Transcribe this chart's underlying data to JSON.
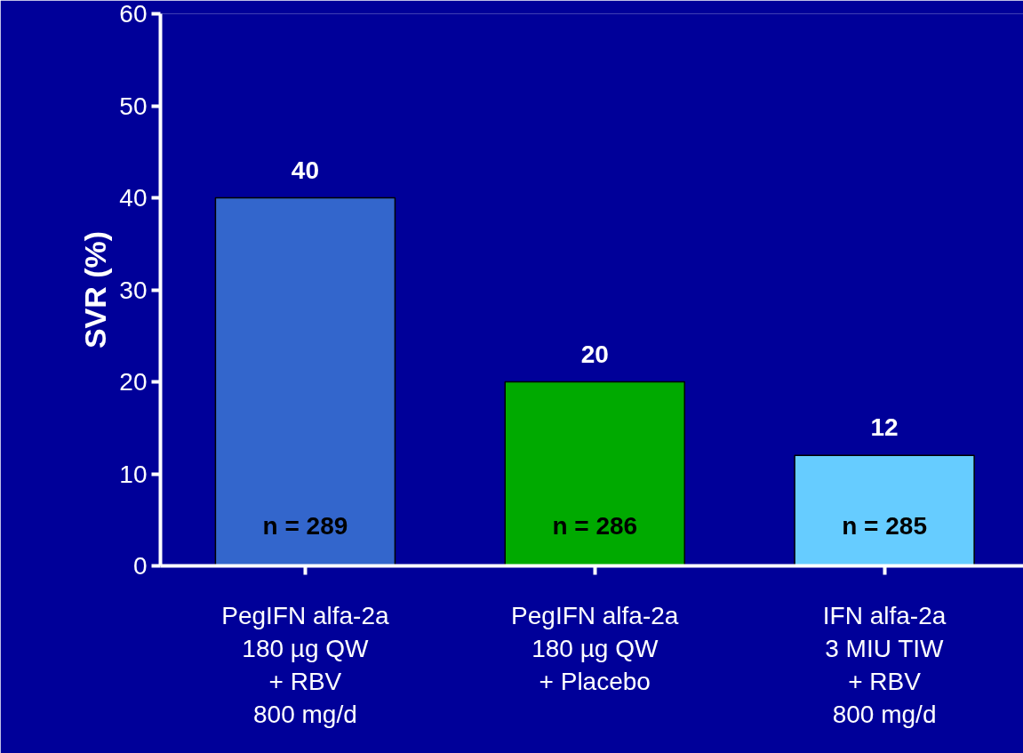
{
  "chart_data": {
    "type": "bar",
    "ylabel": "SVR (%)",
    "categories": [
      "PegIFN alfa-2a\n180 µg QW\n+ RBV\n800 mg/d",
      "PegIFN alfa-2a\n180 µg QW\n+ Placebo",
      "IFN alfa-2a\n3 MIU TIW\n+ RBV\n800 mg/d"
    ],
    "values": [
      40,
      20,
      12
    ],
    "colors": [
      "#3366cc",
      "#00aa00",
      "#66ccff"
    ],
    "data_labels": true,
    "ylim": [
      0,
      60
    ],
    "yticks": [
      0,
      10,
      20,
      30,
      40,
      50,
      60
    ],
    "grid": false,
    "annotations": [
      "n = 289",
      "n = 286",
      "n = 285"
    ]
  }
}
